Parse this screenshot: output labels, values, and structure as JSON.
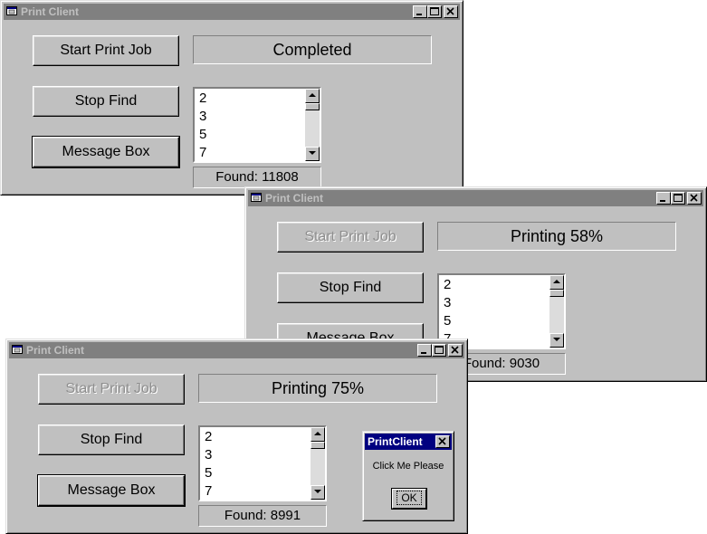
{
  "windows": [
    {
      "title": "Print Client",
      "buttons": {
        "start": "Start Print Job",
        "stop": "Stop Find",
        "message": "Message Box"
      },
      "status": "Completed",
      "list_items": [
        "2",
        "3",
        "5",
        "7"
      ],
      "found": "Found: 11808"
    },
    {
      "title": "Print Client",
      "buttons": {
        "start": "Start Print Job",
        "stop": "Stop Find",
        "message": "Message Box"
      },
      "status": "Printing 58%",
      "list_items": [
        "2",
        "3",
        "5",
        "7"
      ],
      "found": "Found: 9030"
    },
    {
      "title": "Print Client",
      "buttons": {
        "start": "Start Print Job",
        "stop": "Stop Find",
        "message": "Message Box"
      },
      "status": "Printing 75%",
      "list_items": [
        "2",
        "3",
        "5",
        "7"
      ],
      "found": "Found: 8991"
    }
  ],
  "dialog": {
    "title": "PrintClient",
    "message": "Click Me Please",
    "ok": "OK"
  }
}
